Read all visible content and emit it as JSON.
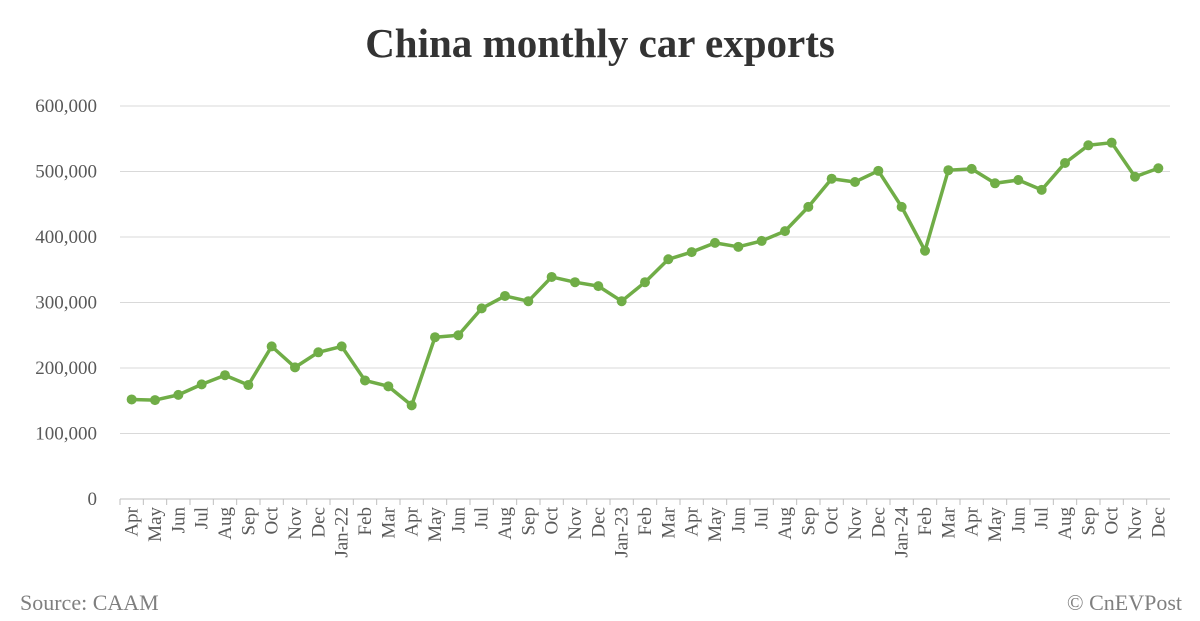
{
  "chart_data": {
    "type": "line",
    "title": "China monthly car exports",
    "xlabel": "",
    "ylabel": "",
    "ylim": [
      0,
      600000
    ],
    "yticks": [
      "0",
      "100,000",
      "200,000",
      "300,000",
      "400,000",
      "500,000",
      "600,000"
    ],
    "grid": true,
    "line_color": "#70ad47",
    "categories": [
      "Apr",
      "May",
      "Jun",
      "Jul",
      "Aug",
      "Sep",
      "Oct",
      "Nov",
      "Dec",
      "Jan-22",
      "Feb",
      "Mar",
      "Apr",
      "May",
      "Jun",
      "Jul",
      "Aug",
      "Sep",
      "Oct",
      "Nov",
      "Dec",
      "Jan-23",
      "Feb",
      "Mar",
      "Apr",
      "May",
      "Jun",
      "Jul",
      "Aug",
      "Sep",
      "Oct",
      "Nov",
      "Dec",
      "Jan-24",
      "Feb",
      "Mar",
      "Apr",
      "May",
      "Jun",
      "Jul",
      "Aug",
      "Sep",
      "Oct",
      "Nov",
      "Dec"
    ],
    "values": [
      152000,
      151000,
      159000,
      175000,
      189000,
      174000,
      233000,
      201000,
      224000,
      233000,
      181000,
      172000,
      143000,
      247000,
      250000,
      291000,
      310000,
      302000,
      339000,
      331000,
      325000,
      302000,
      331000,
      366000,
      377000,
      391000,
      385000,
      394000,
      409000,
      446000,
      489000,
      484000,
      501000,
      446000,
      379000,
      502000,
      504000,
      482000,
      487000,
      472000,
      513000,
      540000,
      544000,
      492000,
      505000
    ]
  },
  "footer": {
    "source": "Source: CAAM",
    "credit": "© CnEVPost"
  }
}
